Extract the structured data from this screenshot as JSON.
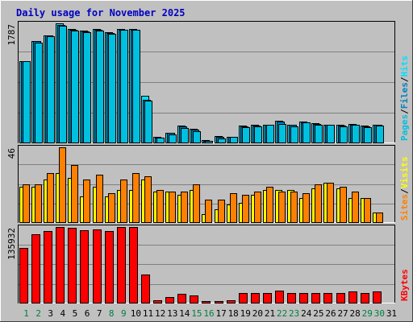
{
  "colors": {
    "background": "#C0C0C0",
    "title": "#0000C0",
    "hits": "#00E0FF",
    "files": "#0080C0",
    "pages": "#00C0E0",
    "visits": "#FFFF00",
    "sites": "#FF8000",
    "kbytes": "#FF0000",
    "weekend_label": "#008040",
    "weekday_label": "#000000"
  },
  "chart_data": {
    "type": "bar",
    "title": "Daily usage for November 2025",
    "categories": [
      "1",
      "2",
      "3",
      "4",
      "5",
      "6",
      "7",
      "8",
      "9",
      "10",
      "11",
      "12",
      "13",
      "14",
      "15",
      "16",
      "17",
      "18",
      "19",
      "20",
      "21",
      "22",
      "23",
      "24",
      "25",
      "26",
      "27",
      "28",
      "29",
      "30",
      "31"
    ],
    "weekend_days": [
      "1",
      "2",
      "8",
      "9",
      "15",
      "16",
      "22",
      "23",
      "29",
      "30"
    ],
    "panels": [
      {
        "id": "hits-files-pages",
        "max_label": "1787",
        "ymax": 1787,
        "legend": [
          "Pages",
          "/",
          "Files",
          "/",
          "Hits"
        ],
        "series": [
          {
            "name": "Hits",
            "values": [
              1220,
              1520,
              1600,
              1787,
              1700,
              1680,
              1700,
              1650,
              1700,
              1700,
              700,
              80,
              150,
              250,
              200,
              40,
              100,
              90,
              250,
              260,
              270,
              320,
              270,
              310,
              290,
              270,
              260,
              280,
              250,
              270,
              0
            ]
          },
          {
            "name": "Files",
            "values": [
              1220,
              1520,
              1600,
              1760,
              1690,
              1670,
              1690,
              1640,
              1690,
              1690,
              640,
              70,
              140,
              240,
              190,
              30,
              90,
              80,
              240,
              250,
              260,
              310,
              260,
              300,
              280,
              260,
              250,
              270,
              240,
              260,
              0
            ]
          },
          {
            "name": "Pages",
            "values": [
              1220,
              1500,
              1590,
              1750,
              1680,
              1660,
              1680,
              1630,
              1690,
              1690,
              630,
              70,
              120,
              220,
              170,
              30,
              60,
              80,
              230,
              240,
              260,
              280,
              240,
              300,
              270,
              260,
              240,
              270,
              230,
              250,
              0
            ]
          }
        ]
      },
      {
        "id": "visits-sites",
        "max_label": "46",
        "ymax": 46,
        "legend": [
          "Sites",
          "/",
          "Visits"
        ],
        "series": [
          {
            "name": "Visits",
            "values": [
              22,
              22,
              26,
              30,
              27,
              16,
              22,
              16,
              20,
              20,
              26,
              19,
              19,
              17,
              20,
              5,
              8,
              11,
              12,
              17,
              20,
              20,
              20,
              15,
              21,
              24,
              21,
              15,
              15,
              6,
              0
            ]
          },
          {
            "name": "Sites",
            "values": [
              23,
              23,
              30,
              46,
              35,
              26,
              29,
              18,
              26,
              30,
              28,
              20,
              19,
              19,
              23,
              14,
              14,
              18,
              17,
              19,
              22,
              19,
              19,
              18,
              23,
              24,
              22,
              19,
              15,
              6,
              0
            ]
          }
        ]
      },
      {
        "id": "kbytes",
        "max_label": "135932",
        "ymax": 135932,
        "legend": [
          "KBytes"
        ],
        "series": [
          {
            "name": "KBytes",
            "values": [
              98000,
              123000,
              129000,
              135932,
              134000,
              130000,
              132000,
              128000,
              135932,
              135932,
              50000,
              5000,
              10000,
              16000,
              13000,
              3000,
              3000,
              5000,
              18000,
              18000,
              18000,
              21000,
              18000,
              18000,
              18000,
              18000,
              18000,
              20000,
              18000,
              20000,
              0
            ]
          }
        ]
      }
    ]
  }
}
